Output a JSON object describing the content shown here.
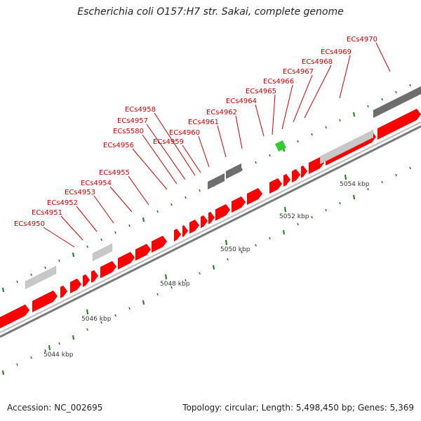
{
  "title": "Escherichia coli O157:H7 str. Sakai, complete genome",
  "accession_label": "Accession:",
  "accession": "NC_002695",
  "topology_label": "Topology:",
  "topology": "circular",
  "length_label": "Length:",
  "length": "5,498,450 bp",
  "genes_label": "Genes:",
  "genes": "5,369",
  "colors": {
    "forward_gene": "#ff0000",
    "reverse_gene_light": "#c8c8c8",
    "reverse_gene_dark": "#6e6e6e",
    "rna_gene": "#33cc33",
    "label_text": "#cc0000",
    "tick": "#1a7a1a",
    "backbone": "#9a9a9a"
  },
  "scale_labels": [
    "5044 kbp",
    "5046 kbp",
    "5048 kbp",
    "5050 kbp",
    "5052 kbp",
    "5054 kbp"
  ],
  "gene_labels": [
    "ECs4950",
    "ECs4951",
    "ECs4952",
    "ECs4953",
    "ECs4954",
    "ECs4955",
    "ECs4956",
    "ECs5580",
    "ECs4957",
    "ECs4958",
    "ECs4959",
    "ECs4960",
    "ECs4961",
    "ECs4962",
    "ECs4964",
    "ECs4965",
    "ECs4966",
    "ECs4967",
    "ECs4968",
    "ECs4969",
    "ECs4970"
  ]
}
